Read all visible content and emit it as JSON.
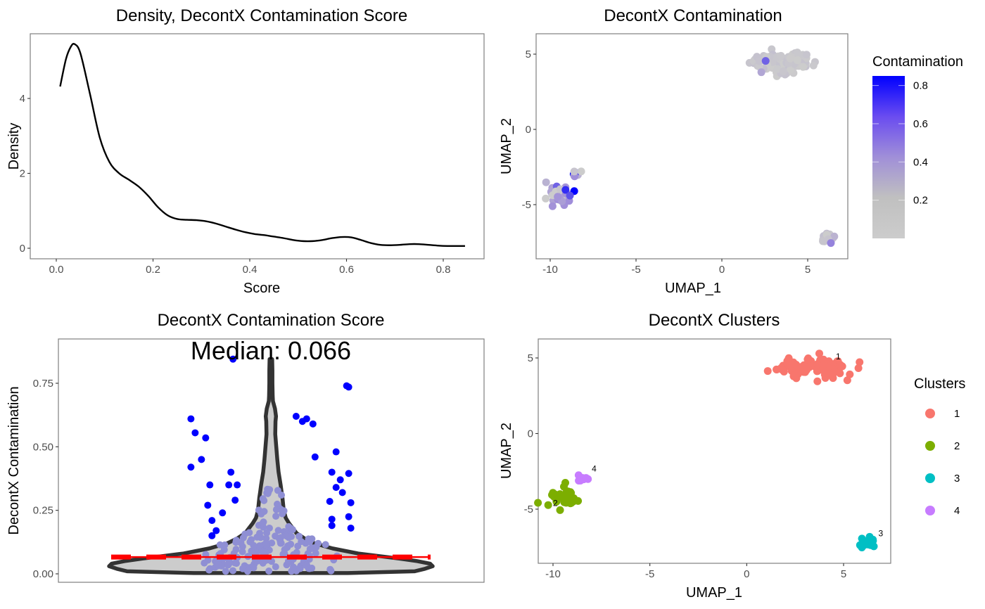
{
  "chart_data": [
    {
      "id": "density",
      "type": "line",
      "title": "Density, DecontX Contamination Score",
      "xlabel": "Score",
      "ylabel": "Density",
      "xlim": [
        -0.035,
        0.88
      ],
      "ylim": [
        -0.25,
        5.7
      ],
      "xticks": [
        0.0,
        0.2,
        0.4,
        0.6,
        0.8
      ],
      "xtick_labels": [
        "0.0",
        "0.2",
        "0.4",
        "0.6",
        "0.8"
      ],
      "yticks": [
        0,
        2,
        4
      ],
      "ytick_labels": [
        "0",
        "2",
        "4"
      ],
      "grid": false,
      "series": [
        {
          "name": "density",
          "color": "#000000",
          "x": [
            0.008,
            0.02,
            0.03,
            0.038,
            0.05,
            0.07,
            0.09,
            0.11,
            0.13,
            0.15,
            0.17,
            0.19,
            0.21,
            0.23,
            0.25,
            0.27,
            0.29,
            0.31,
            0.33,
            0.35,
            0.37,
            0.39,
            0.41,
            0.43,
            0.45,
            0.47,
            0.49,
            0.51,
            0.53,
            0.55,
            0.57,
            0.59,
            0.61,
            0.63,
            0.65,
            0.67,
            0.69,
            0.71,
            0.73,
            0.75,
            0.77,
            0.79,
            0.81,
            0.83,
            0.845
          ],
          "y": [
            4.32,
            5.05,
            5.38,
            5.45,
            5.2,
            4.1,
            2.95,
            2.3,
            2.0,
            1.83,
            1.65,
            1.4,
            1.1,
            0.88,
            0.78,
            0.76,
            0.75,
            0.72,
            0.66,
            0.58,
            0.5,
            0.43,
            0.38,
            0.35,
            0.31,
            0.27,
            0.22,
            0.19,
            0.19,
            0.22,
            0.27,
            0.3,
            0.29,
            0.22,
            0.14,
            0.09,
            0.08,
            0.09,
            0.11,
            0.11,
            0.09,
            0.07,
            0.06,
            0.06,
            0.06
          ]
        }
      ]
    },
    {
      "id": "umap-contamination",
      "type": "scatter",
      "title": "DecontX Contamination",
      "xlabel": "UMAP_1",
      "ylabel": "UMAP_2",
      "xlim": [
        -10.8,
        7.3
      ],
      "ylim": [
        -8.4,
        6.6
      ],
      "xticks": [
        -10,
        -5,
        0,
        5
      ],
      "xtick_labels": [
        "-10",
        "-5",
        "0",
        "5"
      ],
      "yticks": [
        -5,
        0,
        5
      ],
      "ytick_labels": [
        "-5",
        "0",
        "5"
      ],
      "grid": false,
      "legend": {
        "title": "Contamination",
        "type": "colorbar",
        "placement": "right",
        "low_color": "#CCCCCC",
        "high_color": "#0000FF",
        "range": [
          0.0,
          0.85
        ],
        "breaks": [
          0.2,
          0.4,
          0.6,
          0.8
        ],
        "break_labels": [
          "0.2",
          "0.4",
          "0.6",
          "0.8"
        ]
      },
      "clusters": [
        {
          "cluster": "1",
          "cx": 3.5,
          "cy": 4.45,
          "sx": 0.95,
          "sy": 0.35,
          "n": 90,
          "contamination_mean": 0.03,
          "highlights": [
            {
              "x": 2.55,
              "y": 4.55,
              "c": 0.55
            },
            {
              "x": 2.3,
              "y": 3.8,
              "c": 0.25
            }
          ]
        },
        {
          "cluster": "2",
          "cx": -9.5,
          "cy": -4.3,
          "sx": 0.35,
          "sy": 0.35,
          "n": 40,
          "contamination_mean": 0.25,
          "highlights": [
            {
              "x": -8.6,
              "y": -4.1,
              "c": 0.85
            },
            {
              "x": -8.85,
              "y": -4.4,
              "c": 0.6
            }
          ]
        },
        {
          "cluster": "3",
          "cx": 6.25,
          "cy": -7.3,
          "sx": 0.18,
          "sy": 0.18,
          "n": 20,
          "contamination_mean": 0.05,
          "highlights": [
            {
              "x": 6.35,
              "y": -7.55,
              "c": 0.45
            }
          ]
        },
        {
          "cluster": "4",
          "cx": -8.5,
          "cy": -3.0,
          "sx": 0.15,
          "sy": 0.12,
          "n": 10,
          "contamination_mean": 0.6,
          "highlights": [
            {
              "x": -8.6,
              "y": -2.8,
              "c": 0.05
            }
          ]
        }
      ]
    },
    {
      "id": "violin",
      "type": "violin",
      "title": "DecontX Contamination Score",
      "xlabel": "",
      "ylabel": "DecontX Contamination",
      "ylim": [
        -0.04,
        0.93
      ],
      "yticks": [
        0.0,
        0.25,
        0.5,
        0.75
      ],
      "ytick_labels": [
        "0.00",
        "0.25",
        "0.50",
        "0.75"
      ],
      "grid": false,
      "annotation": "Median: 0.066",
      "median": 0.066,
      "median_line_color": "#FF0000",
      "violin_fill": "#CCCCCC",
      "violin_stroke": "#333333",
      "outlier_color": "#0000FF",
      "inlier_color": "#8F8FD4",
      "violin_profile": {
        "y": [
          0.003,
          0.01,
          0.02,
          0.03,
          0.04,
          0.05,
          0.06,
          0.07,
          0.08,
          0.1,
          0.12,
          0.14,
          0.16,
          0.18,
          0.2,
          0.22,
          0.25,
          0.28,
          0.3,
          0.32,
          0.35,
          0.4,
          0.45,
          0.5,
          0.55,
          0.6,
          0.62,
          0.65,
          0.68,
          0.7,
          0.75,
          0.8,
          0.845
        ],
        "half_width": [
          0.3,
          0.56,
          0.6,
          0.63,
          0.62,
          0.57,
          0.5,
          0.42,
          0.34,
          0.24,
          0.17,
          0.13,
          0.1,
          0.085,
          0.07,
          0.058,
          0.05,
          0.047,
          0.045,
          0.042,
          0.038,
          0.03,
          0.025,
          0.021,
          0.017,
          0.018,
          0.02,
          0.016,
          0.008,
          0.007,
          0.006,
          0.006,
          0.005
        ]
      },
      "outliers": [
        {
          "x": -0.18,
          "y": 0.845
        },
        {
          "x": 0.36,
          "y": 0.74
        },
        {
          "x": 0.37,
          "y": 0.735
        },
        {
          "x": -0.38,
          "y": 0.61
        },
        {
          "x": -0.36,
          "y": 0.555
        },
        {
          "x": -0.31,
          "y": 0.535
        },
        {
          "x": -0.38,
          "y": 0.42
        },
        {
          "x": -0.33,
          "y": 0.45
        },
        {
          "x": 0.12,
          "y": 0.62
        },
        {
          "x": 0.15,
          "y": 0.6
        },
        {
          "x": 0.17,
          "y": 0.61
        },
        {
          "x": 0.2,
          "y": 0.59
        },
        {
          "x": 0.21,
          "y": 0.46
        },
        {
          "x": 0.31,
          "y": 0.48
        },
        {
          "x": 0.29,
          "y": 0.4
        },
        {
          "x": 0.37,
          "y": 0.395
        },
        {
          "x": -0.19,
          "y": 0.4
        },
        {
          "x": -0.2,
          "y": 0.35
        },
        {
          "x": -0.29,
          "y": 0.35
        },
        {
          "x": -0.16,
          "y": 0.35
        },
        {
          "x": -0.3,
          "y": 0.27
        },
        {
          "x": -0.23,
          "y": 0.24
        },
        {
          "x": -0.28,
          "y": 0.21
        },
        {
          "x": 0.33,
          "y": 0.37
        },
        {
          "x": 0.34,
          "y": 0.32
        },
        {
          "x": 0.31,
          "y": 0.34
        },
        {
          "x": 0.38,
          "y": 0.28
        },
        {
          "x": 0.28,
          "y": 0.285
        },
        {
          "x": 0.29,
          "y": 0.215
        },
        {
          "x": 0.37,
          "y": 0.225
        },
        {
          "x": 0.38,
          "y": 0.18
        },
        {
          "x": -0.26,
          "y": 0.17
        },
        {
          "x": 0.29,
          "y": 0.19
        },
        {
          "x": -0.28,
          "y": 0.15
        },
        {
          "x": -0.17,
          "y": 0.29
        }
      ],
      "inlier_count": 170
    },
    {
      "id": "umap-clusters",
      "type": "scatter",
      "title": "DecontX Clusters",
      "xlabel": "UMAP_1",
      "ylabel": "UMAP_2",
      "xlim": [
        -10.8,
        7.4
      ],
      "ylim": [
        -8.6,
        6.3
      ],
      "xticks": [
        -10,
        -5,
        0,
        5
      ],
      "xtick_labels": [
        "-10",
        "-5",
        "0",
        "5"
      ],
      "yticks": [
        -5,
        0,
        5
      ],
      "ytick_labels": [
        "-5",
        "0",
        "5"
      ],
      "grid": false,
      "legend": {
        "title": "Clusters",
        "placement": "right",
        "entries": [
          {
            "label": "1",
            "color": "#F8766D"
          },
          {
            "label": "2",
            "color": "#7CAE00"
          },
          {
            "label": "3",
            "color": "#00BFC4"
          },
          {
            "label": "4",
            "color": "#C77CFF"
          }
        ]
      },
      "clusters": [
        {
          "cluster": "1",
          "color": "#F8766D",
          "cx": 3.5,
          "cy": 4.45,
          "sx": 0.95,
          "sy": 0.35,
          "n": 90,
          "label_x": 4.6,
          "label_y": 4.9
        },
        {
          "cluster": "2",
          "color": "#7CAE00",
          "cx": -9.45,
          "cy": -4.3,
          "sx": 0.33,
          "sy": 0.33,
          "n": 40,
          "label_x": -10.0,
          "label_y": -4.8
        },
        {
          "cluster": "3",
          "color": "#00BFC4",
          "cx": 6.25,
          "cy": -7.25,
          "sx": 0.18,
          "sy": 0.18,
          "n": 20,
          "label_x": 6.8,
          "label_y": -6.8
        },
        {
          "cluster": "4",
          "color": "#C77CFF",
          "cx": -8.5,
          "cy": -3.0,
          "sx": 0.15,
          "sy": 0.12,
          "n": 10,
          "label_x": -8.0,
          "label_y": -2.5
        }
      ]
    }
  ]
}
